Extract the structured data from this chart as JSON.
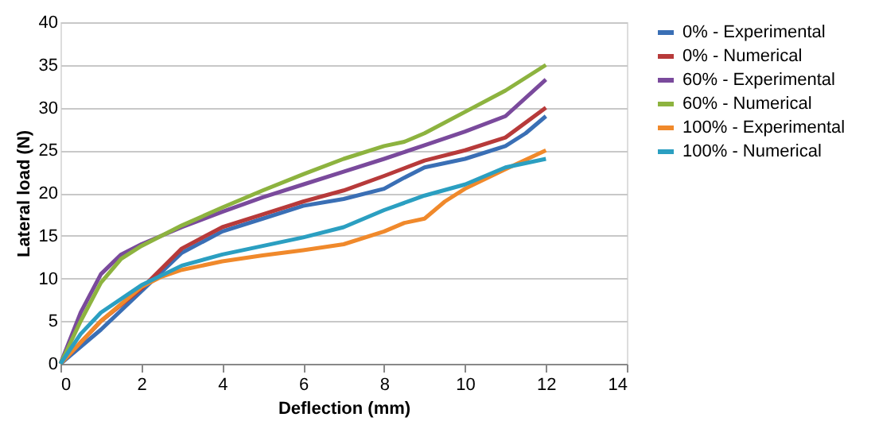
{
  "chart_data": {
    "type": "line",
    "xlabel": "Deflection (mm)",
    "ylabel": "Lateral load (N)",
    "xlim": [
      0,
      14
    ],
    "xticks": [
      0,
      2,
      4,
      6,
      8,
      10,
      12,
      14
    ],
    "ylim": [
      0,
      40
    ],
    "yticks": [
      0,
      5,
      10,
      15,
      20,
      25,
      30,
      35,
      40
    ],
    "grid": "y",
    "legend": "right",
    "marker": "none",
    "line_style": "solid",
    "series": [
      {
        "name": "0% - Experimental",
        "color": "#3a6fb5",
        "x": [
          0,
          1,
          2,
          3,
          4,
          5,
          6,
          7,
          8,
          8.5,
          9,
          10,
          11,
          11.5,
          12
        ],
        "values": [
          0,
          4,
          8.5,
          13,
          15.5,
          17,
          18.5,
          19.3,
          20.5,
          21.8,
          23,
          24,
          25.5,
          27,
          29
        ]
      },
      {
        "name": "0% - Numerical",
        "color": "#b73a3a",
        "x": [
          0,
          1,
          2,
          3,
          4,
          5,
          6,
          7,
          8,
          9,
          10,
          11,
          12
        ],
        "values": [
          0,
          5,
          8.8,
          13.5,
          16,
          17.5,
          19,
          20.3,
          22,
          23.8,
          25,
          26.5,
          30
        ]
      },
      {
        "name": "60% - Experimental",
        "color": "#7a4a9c",
        "x": [
          0,
          0.5,
          1,
          1.5,
          2,
          3,
          4,
          5,
          6,
          7,
          8,
          9,
          10,
          11,
          12
        ],
        "values": [
          0,
          6,
          10.5,
          12.8,
          14,
          16,
          17.8,
          19.5,
          21,
          22.5,
          24,
          25.6,
          27.2,
          29,
          33.3
        ]
      },
      {
        "name": "60% - Numerical",
        "color": "#8db33f",
        "x": [
          0,
          0.5,
          1,
          1.5,
          2,
          3,
          4,
          5,
          6,
          7,
          8,
          8.5,
          9,
          10,
          11,
          12
        ],
        "values": [
          0,
          5,
          9.5,
          12.3,
          13.8,
          16.2,
          18.3,
          20.3,
          22.2,
          24,
          25.5,
          26,
          27,
          29.5,
          32,
          35
        ]
      },
      {
        "name": "100% - Experimental",
        "color": "#f0892b",
        "x": [
          0,
          1,
          2,
          2.5,
          3,
          4,
          5,
          6,
          7,
          8,
          8.5,
          9,
          9.5,
          10,
          11,
          12
        ],
        "values": [
          0,
          5,
          9,
          10.2,
          11,
          12,
          12.7,
          13.3,
          14,
          15.5,
          16.5,
          17,
          19,
          20.5,
          22.8,
          25
        ]
      },
      {
        "name": "100% - Numerical",
        "color": "#2b9fc1",
        "x": [
          0,
          0.5,
          1,
          2,
          3,
          4,
          5,
          6,
          7,
          8,
          9,
          10,
          11,
          12
        ],
        "values": [
          0,
          3.5,
          6,
          9.2,
          11.5,
          12.8,
          13.8,
          14.8,
          16,
          18,
          19.7,
          21,
          23,
          24
        ]
      }
    ]
  }
}
